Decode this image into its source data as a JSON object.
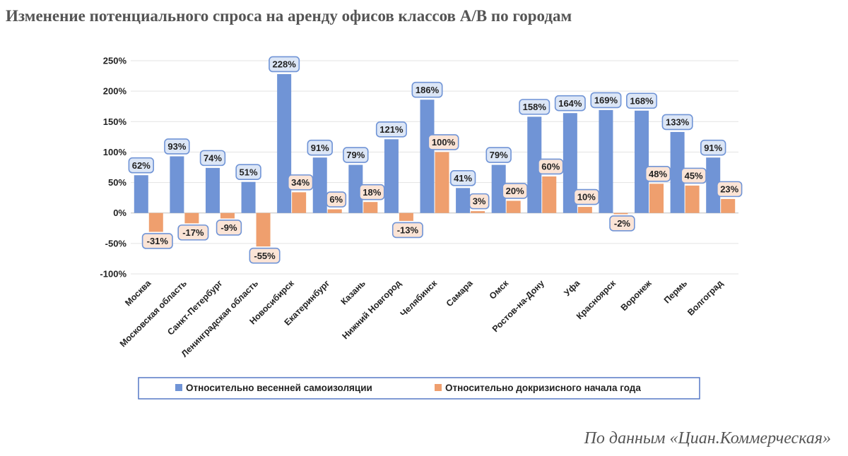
{
  "title": "Изменение потенциального спроса на аренду офисов классов А/В по городам",
  "source": "По данным «Циан.Коммерческая»",
  "colors": {
    "series1": "#7094d6",
    "series2": "#ef9f6e",
    "series1_label_bg": "#dce6f6",
    "series1_label_border": "#7094d6",
    "series2_label_bg": "#fbe4d6",
    "series2_label_border": "#7094d6"
  },
  "chart_data": {
    "type": "bar",
    "title": "Изменение потенциального спроса на аренду офисов классов А/В по городам",
    "xlabel": "",
    "ylabel": "",
    "ylim": [
      -100,
      250
    ],
    "yticks": [
      250,
      200,
      150,
      100,
      50,
      0,
      -50,
      -100
    ],
    "ytick_labels": [
      "250%",
      "200%",
      "150%",
      "100%",
      "50%",
      "0%",
      "-50%",
      "-100%"
    ],
    "grid": true,
    "legend_position": "bottom",
    "categories": [
      "Москва",
      "Московская область",
      "Санкт-Петербург",
      "Ленинградская область",
      "Новосибирск",
      "Екатеринбург",
      "Казань",
      "Нижний Новгород",
      "Челябинск",
      "Самара",
      "Омск",
      "Ростов-на-Дону",
      "Уфа",
      "Красноярск",
      "Воронеж",
      "Пермь",
      "Волгоград"
    ],
    "series": [
      {
        "name": "Относительно весенней самоизоляции",
        "values": [
          62,
          93,
          74,
          51,
          228,
          91,
          79,
          121,
          186,
          41,
          79,
          158,
          164,
          169,
          168,
          133,
          91
        ],
        "labels": [
          "62%",
          "93%",
          "74%",
          "51%",
          "228%",
          "91%",
          "79%",
          "121%",
          "186%",
          "41%",
          "79%",
          "158%",
          "164%",
          "169%",
          "168%",
          "133%",
          "91%"
        ]
      },
      {
        "name": "Относительно докризисного начала года",
        "values": [
          -31,
          -17,
          -9,
          -55,
          34,
          6,
          18,
          -13,
          100,
          3,
          20,
          60,
          10,
          -2,
          48,
          45,
          23
        ],
        "labels": [
          "-31%",
          "-17%",
          "-9%",
          "-55%",
          "34%",
          "6%",
          "18%",
          "-13%",
          "100%",
          "3%",
          "20%",
          "60%",
          "10%",
          "-2%",
          "48%",
          "45%",
          "23%"
        ]
      }
    ]
  }
}
